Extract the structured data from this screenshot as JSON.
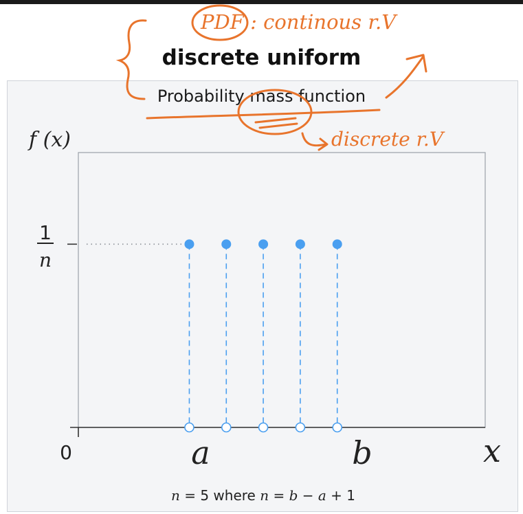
{
  "title": "discrete uniform",
  "subtitle": "Probability mass function",
  "annotations": {
    "pdf_note": "PDF : continous r.V",
    "pmf_note": "discrete r.V"
  },
  "colors": {
    "series": "#4a9ff0",
    "ink": "#e8742c",
    "axis": "#333333",
    "frame": "#f4f5f7"
  },
  "chart_data": {
    "type": "scatter",
    "ylabel": "f (x)",
    "xlabel": "x",
    "origin_label": "0",
    "y_tick": {
      "numerator": "1",
      "denominator": "n"
    },
    "x_tick_labels": [
      "a",
      "b"
    ],
    "x": [
      1,
      2,
      3,
      4,
      5
    ],
    "y": [
      0.2,
      0.2,
      0.2,
      0.2,
      0.2
    ],
    "xlim": [
      -2,
      9
    ],
    "ylim": [
      0,
      0.3
    ],
    "n": 5,
    "caption_parts": [
      "n",
      " = 5 where ",
      "n",
      " = ",
      "b",
      " − ",
      "a",
      " + 1"
    ]
  }
}
